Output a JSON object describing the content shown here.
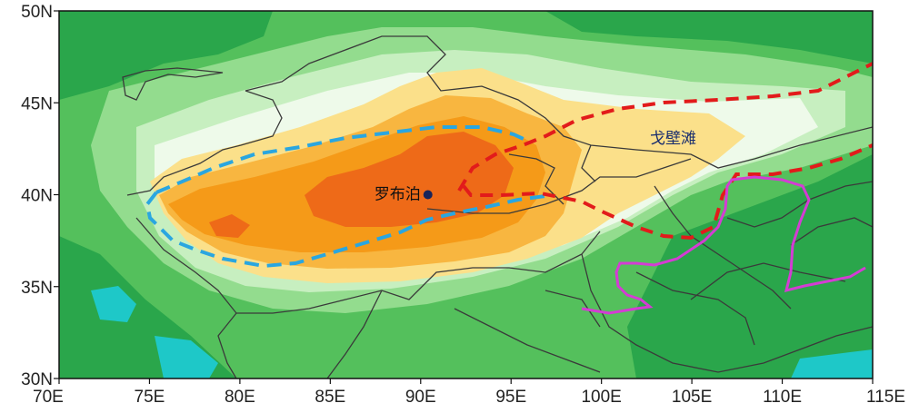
{
  "map": {
    "x_ticks": [
      "70E",
      "75E",
      "80E",
      "85E",
      "90E",
      "95E",
      "100E",
      "105E",
      "110E",
      "115E"
    ],
    "y_ticks": [
      "30N",
      "35N",
      "40N",
      "45N",
      "50N"
    ],
    "labels": {
      "lop_nur": "罗布泊",
      "gobi": "戈壁滩"
    },
    "point": {
      "name": "罗布泊",
      "lon": 90.4,
      "lat": 40.0
    },
    "colors": {
      "frame": "#111111",
      "ocean_cyan": "#1ec8c8",
      "green_dark": "#2aa64b",
      "green_mid": "#54c05c",
      "green_light": "#93dc8e",
      "green_pale": "#c7efc0",
      "white_band": "#eefaea",
      "yellow": "#fbe08a",
      "orange_light": "#f8b640",
      "orange": "#f59a18",
      "red_orange": "#ee6a18",
      "blue_dash": "#2aa6e0",
      "red_dash": "#e21b1b",
      "magenta": "#d43cd4",
      "border": "#3a3a3a",
      "dot": "#17245a"
    }
  }
}
